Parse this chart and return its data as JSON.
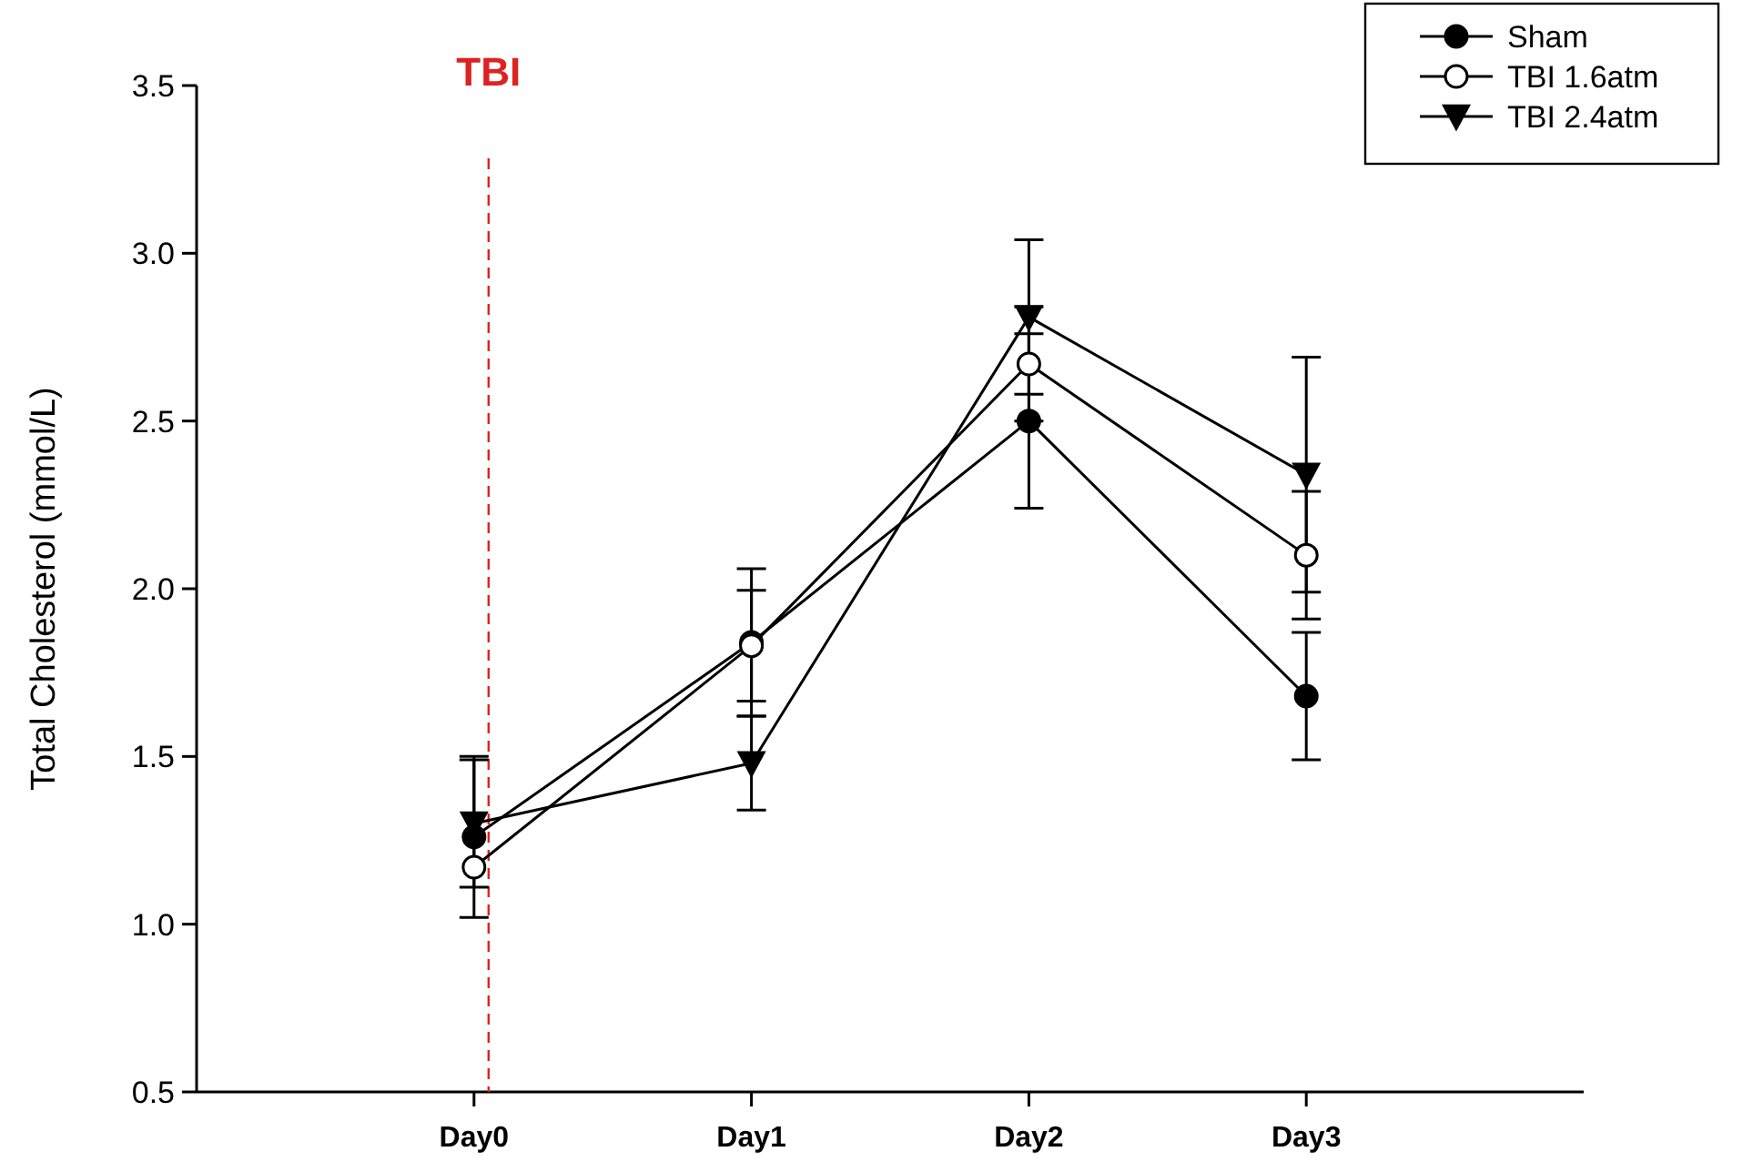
{
  "chart_data": {
    "type": "line",
    "ylabel": "Total  Cholesterol (mmol/L)",
    "categories": [
      "Day0",
      "Day1",
      "Day2",
      "Day3"
    ],
    "series": [
      {
        "name": "Sham",
        "color": "#000000",
        "marker": "circle",
        "values": [
          1.26,
          1.84,
          2.5,
          1.68
        ],
        "errors": [
          0.24,
          0.22,
          0.26,
          0.19
        ]
      },
      {
        "name": "TBI 1.6atm",
        "color": "#000000",
        "marker": "circle-open",
        "values": [
          1.17,
          1.83,
          2.67,
          2.1
        ],
        "errors": [
          null,
          0.165,
          0.17,
          0.19
        ]
      },
      {
        "name": "TBI 2.4atm",
        "color": "#000000",
        "marker": "triangle",
        "values": [
          1.3,
          1.48,
          2.81,
          2.34
        ],
        "errors": [
          0.19,
          0.14,
          0.23,
          0.35
        ]
      }
    ],
    "ylim": [
      0.5,
      3.5
    ],
    "yticks": [
      {
        "value": 0.5,
        "label": "0.5"
      },
      {
        "value": 1,
        "label": "1.0"
      },
      {
        "value": 1.5,
        "label": "1.5"
      },
      {
        "value": 2,
        "label": "2.0"
      },
      {
        "value": 2.5,
        "label": "2.5"
      },
      {
        "value": 3,
        "label": "3.0"
      },
      {
        "value": 3.5,
        "label": "3.5"
      }
    ],
    "ref_lines": [
      {
        "axis": "x",
        "value": "Day0",
        "label": "TBI",
        "color": "#dd2222",
        "line_style": "dashed"
      }
    ],
    "grid": false,
    "legend": "top right",
    "line_style": "solid"
  }
}
